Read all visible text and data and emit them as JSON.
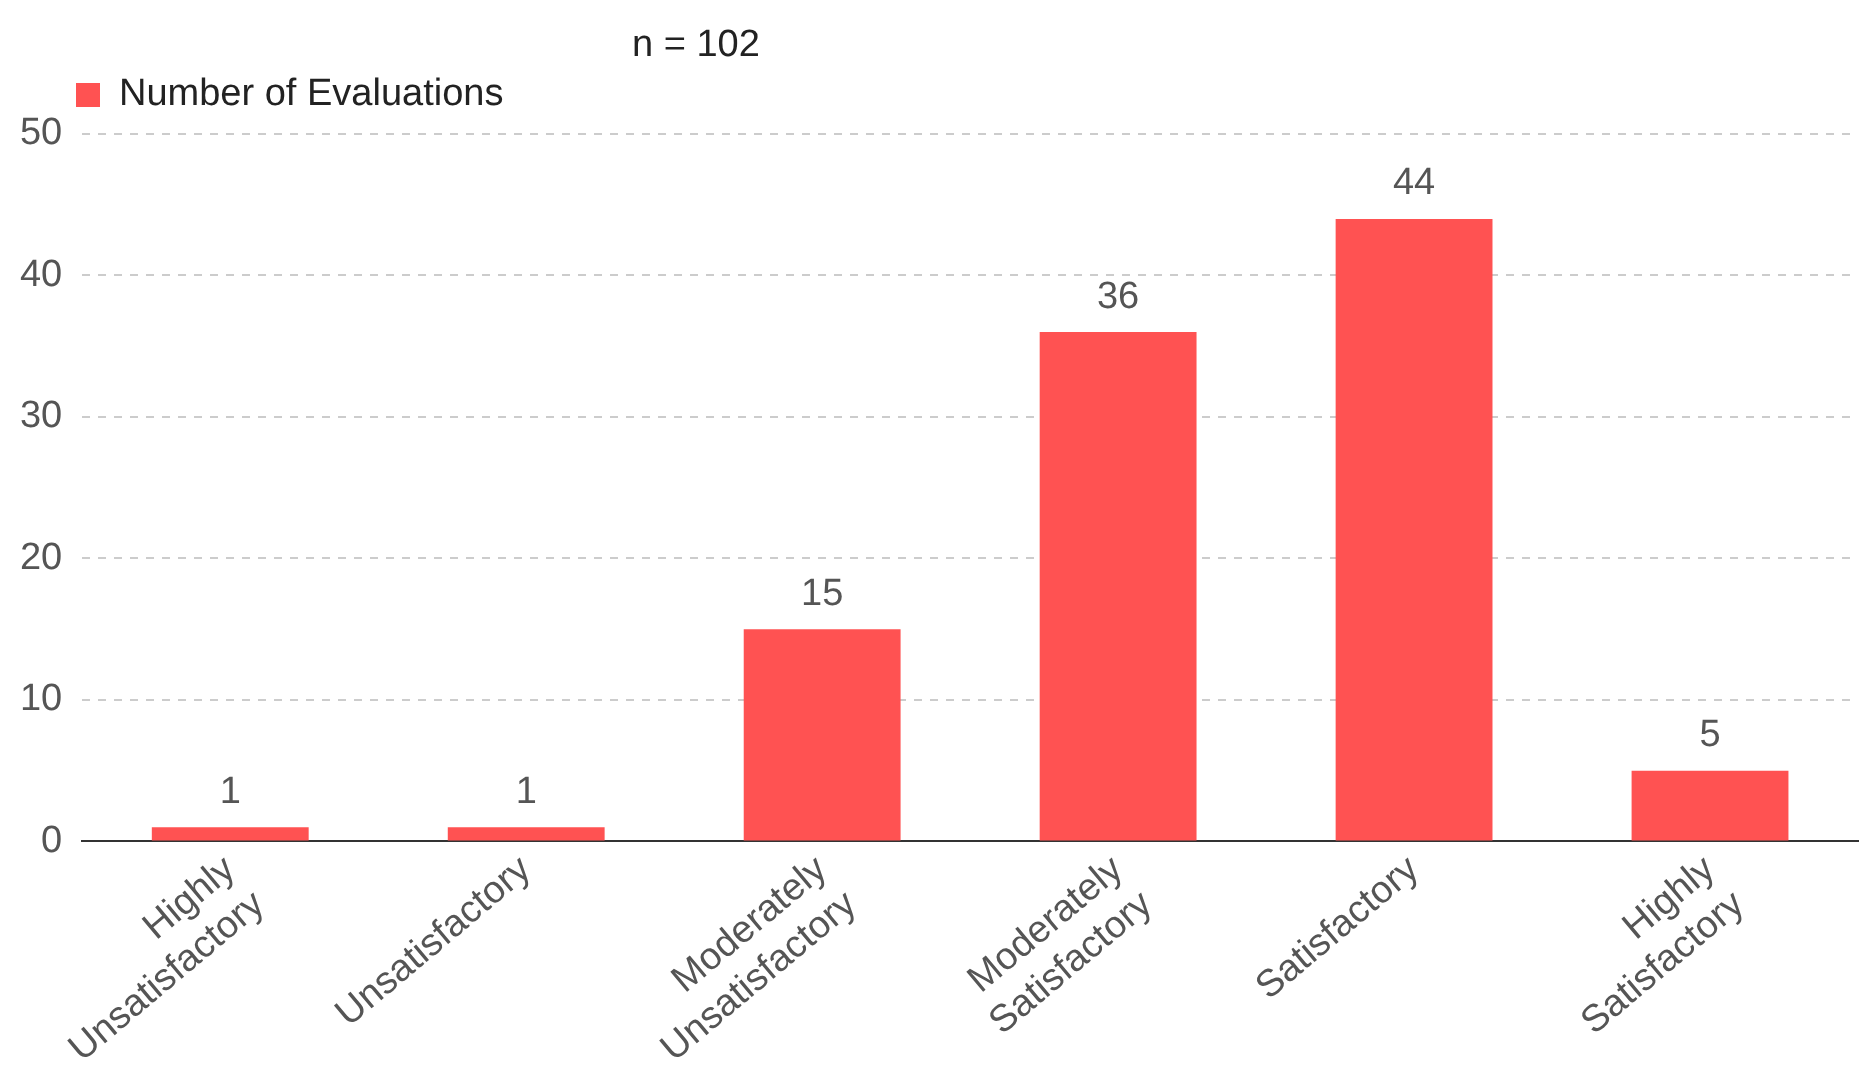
{
  "chart_data": {
    "type": "bar",
    "categories": [
      "Highly Unsatisfactory",
      "Unsatisfactory",
      "Moderately Unsatisfactory",
      "Moderately Satisfactory",
      "Satisfactory",
      "Highly Satisfactory"
    ],
    "series": [
      {
        "name": "Number of Evaluations",
        "color": "#ff5252",
        "values": [
          1,
          1,
          15,
          36,
          44,
          5
        ]
      }
    ],
    "ylim": [
      0,
      50
    ],
    "yticks": [
      0,
      10,
      20,
      30,
      40,
      50
    ],
    "grid": "y",
    "legend": "top left",
    "data_labels": true,
    "annotations": [
      "n = 102"
    ]
  }
}
